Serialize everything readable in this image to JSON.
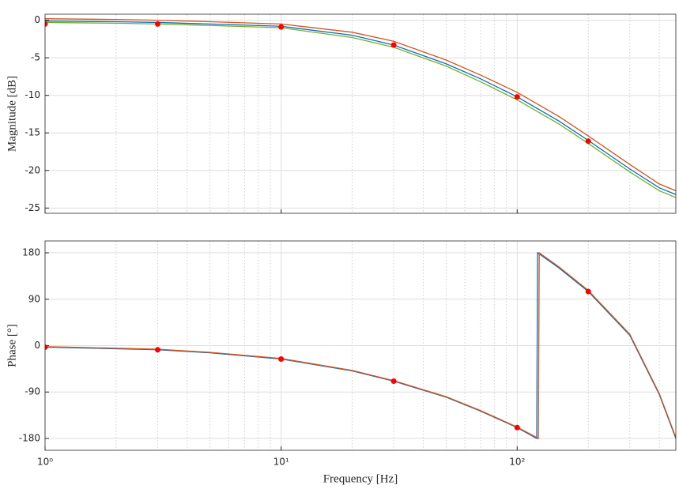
{
  "chart_data": [
    {
      "type": "line",
      "xscale": "log",
      "grid": true,
      "minor_grid": true,
      "ylabel": "Magnitude [dB]",
      "xlim": [
        1,
        470
      ],
      "ylim": [
        -25.7,
        0.8
      ],
      "xticks": [
        1,
        10,
        100
      ],
      "yticks": [
        -25,
        -20,
        -15,
        -10,
        -5,
        0
      ],
      "series": [
        {
          "mode": "lines",
          "color": "#0072bd",
          "x": [
            1,
            2,
            3,
            5,
            10,
            20,
            30,
            50,
            70,
            100,
            150,
            200,
            300,
            400,
            470
          ],
          "values": [
            -0.1,
            -0.2,
            -0.3,
            -0.5,
            -0.8,
            -2,
            -3.3,
            -5.8,
            -7.8,
            -10.2,
            -13.4,
            -16,
            -19.8,
            -22.3,
            -23.2
          ]
        },
        {
          "mode": "lines",
          "color": "#d95319",
          "x": [
            1,
            2,
            3,
            5,
            10,
            20,
            30,
            50,
            70,
            100,
            150,
            200,
            300,
            400,
            470
          ],
          "values": [
            0.2,
            0.1,
            0,
            -0.2,
            -0.5,
            -1.6,
            -2.8,
            -5.3,
            -7.3,
            -9.6,
            -12.8,
            -15.4,
            -19.2,
            -21.8,
            -22.7
          ]
        },
        {
          "mode": "lines",
          "color": "#77ac30",
          "x": [
            1,
            2,
            3,
            5,
            10,
            20,
            30,
            50,
            70,
            100,
            150,
            200,
            300,
            400,
            470
          ],
          "values": [
            -0.3,
            -0.4,
            -0.5,
            -0.7,
            -1,
            -2.3,
            -3.6,
            -6.1,
            -8.2,
            -10.6,
            -13.8,
            -16.4,
            -20.2,
            -22.7,
            -23.6
          ]
        },
        {
          "mode": "markers",
          "color": "#ff0000",
          "x": [
            1,
            3,
            10,
            30,
            100,
            200
          ],
          "values": [
            -0.5,
            -0.5,
            -0.9,
            -3.3,
            -10.2,
            -16.1
          ]
        }
      ]
    },
    {
      "type": "line",
      "xscale": "log",
      "grid": true,
      "minor_grid": true,
      "ylabel": "Phase [°]",
      "xlabel": "Frequency [Hz]",
      "xlim": [
        1,
        470
      ],
      "ylim": [
        -203,
        203
      ],
      "xticks": [
        {
          "value": 1,
          "label": "10⁰"
        },
        {
          "value": 10,
          "label": "10¹"
        },
        {
          "value": 100,
          "label": "10²"
        }
      ],
      "yticks": [
        -180,
        -90,
        0,
        90,
        180
      ],
      "series": [
        {
          "mode": "lines",
          "color": "#0072bd",
          "x": [
            1,
            2,
            3,
            5,
            10,
            20,
            30,
            50,
            70,
            100,
            121,
            122,
            150,
            200,
            300,
            400,
            470
          ],
          "values": [
            -3,
            -6,
            -8,
            -14,
            -26,
            -49,
            -69,
            -100,
            -127,
            -159,
            -180,
            180,
            151,
            105,
            20,
            -95,
            -180
          ]
        },
        {
          "mode": "lines",
          "color": "#d95319",
          "x": [
            1,
            2,
            3,
            5,
            10,
            20,
            30,
            50,
            70,
            100,
            123,
            124,
            150,
            200,
            300,
            400,
            470
          ],
          "values": [
            -2,
            -5,
            -7,
            -13,
            -25,
            -48,
            -68,
            -99,
            -126,
            -158,
            -180,
            180,
            153,
            107,
            22,
            -93,
            -178
          ]
        },
        {
          "mode": "markers",
          "color": "#ff0000",
          "x": [
            1,
            3,
            10,
            30,
            100,
            200
          ],
          "values": [
            -3,
            -8,
            -26,
            -69,
            -159,
            105
          ]
        }
      ]
    }
  ]
}
